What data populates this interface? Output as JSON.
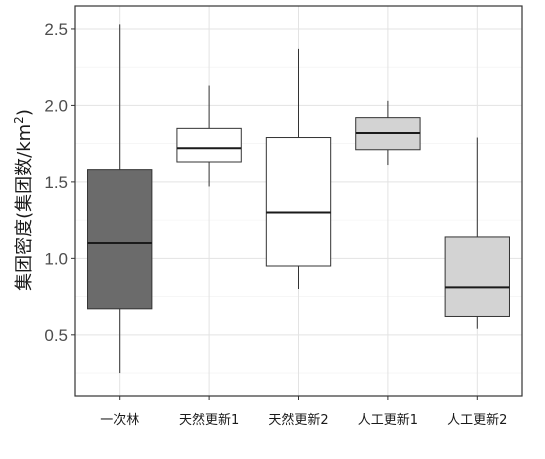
{
  "chart_data": {
    "type": "boxplot",
    "ylabel_main": "集团密度(集团数/km",
    "ylabel_sup": "2",
    "ylabel_close": ")",
    "ylim": [
      0.1,
      2.65
    ],
    "yticks": [
      0.5,
      1.0,
      1.5,
      2.0,
      2.5
    ],
    "ytick_labels": [
      "0.5",
      "1.0",
      "1.5",
      "2.0",
      "2.5"
    ],
    "grid": true,
    "categories": [
      "一次林",
      "天然更新1",
      "天然更新2",
      "人工更新1",
      "人工更新2"
    ],
    "boxes": [
      {
        "min": 0.25,
        "q1": 0.67,
        "median": 1.1,
        "q3": 1.58,
        "max": 2.53,
        "fill": "#6b6b6b"
      },
      {
        "min": 1.47,
        "q1": 1.63,
        "median": 1.72,
        "q3": 1.85,
        "max": 2.13,
        "fill": "#ffffff"
      },
      {
        "min": 0.8,
        "q1": 0.95,
        "median": 1.3,
        "q3": 1.79,
        "max": 2.37,
        "fill": "#ffffff"
      },
      {
        "min": 1.61,
        "q1": 1.71,
        "median": 1.82,
        "q3": 1.92,
        "max": 2.03,
        "fill": "#d3d3d3"
      },
      {
        "min": 0.54,
        "q1": 0.62,
        "median": 0.81,
        "q3": 1.14,
        "max": 1.79,
        "fill": "#d3d3d3"
      }
    ]
  }
}
